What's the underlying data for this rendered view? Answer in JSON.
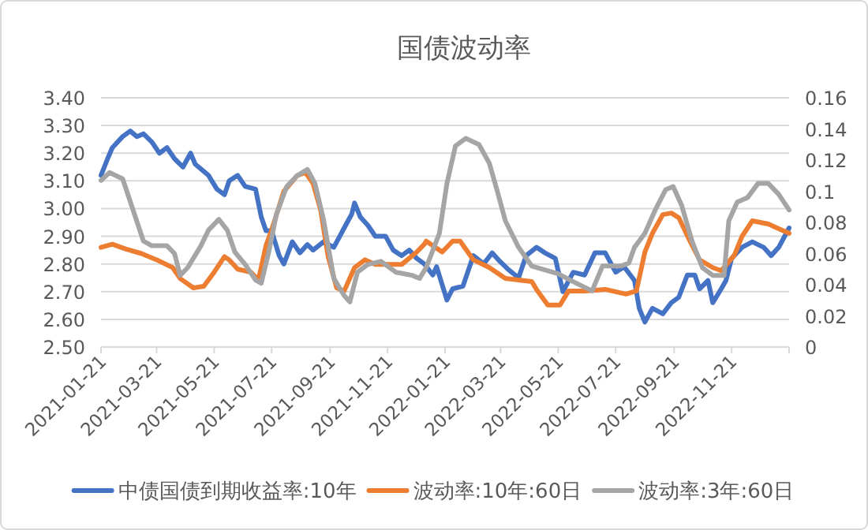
{
  "chart_data": {
    "type": "line",
    "title": "国债波动率",
    "xlim": [
      "2021-01-21",
      "2023-01-21"
    ],
    "xticks": [
      "2021-01-21",
      "2021-03-21",
      "2021-05-21",
      "2021-07-21",
      "2021-09-21",
      "2021-11-21",
      "2022-01-21",
      "2022-03-21",
      "2022-05-21",
      "2022-07-21",
      "2022-09-21",
      "2022-11-21",
      {
        "value": "2023-01-21",
        "label": null
      }
    ],
    "ylim": [
      2.5,
      3.4
    ],
    "yticks": [
      {
        "value": 2.5,
        "label": "2.50"
      },
      {
        "value": 2.6,
        "label": "2.60"
      },
      {
        "value": 2.7,
        "label": "2.70"
      },
      {
        "value": 2.8,
        "label": "2.80"
      },
      {
        "value": 2.9,
        "label": "2.90"
      },
      {
        "value": 3.0,
        "label": "3.00"
      },
      {
        "value": 3.1,
        "label": "3.10"
      },
      {
        "value": 3.2,
        "label": "3.20"
      },
      {
        "value": 3.3,
        "label": "3.30"
      },
      {
        "value": 3.4,
        "label": "3.40"
      }
    ],
    "y2lim": [
      0,
      0.16
    ],
    "y2ticks": [
      0,
      0.02,
      0.04,
      0.06,
      0.08,
      0.1,
      0.12,
      0.14,
      0.16
    ],
    "grid": "y",
    "legend": "bottom",
    "marker": "none",
    "line_style": "solid",
    "series": [
      {
        "name": "中债国债到期收益率:10年",
        "color": "#4472c4",
        "x": [
          "2021-01-21",
          "2021-01-28",
          "2021-02-02",
          "2021-02-13",
          "2021-02-21",
          "2021-02-28",
          "2021-03-07",
          "2021-03-16",
          "2021-03-24",
          "2021-04-01",
          "2021-04-09",
          "2021-04-18",
          "2021-04-26",
          "2021-05-01",
          "2021-05-15",
          "2021-05-24",
          "2021-06-01",
          "2021-06-06",
          "2021-06-15",
          "2021-06-23",
          "2021-07-04",
          "2021-07-10",
          "2021-07-15",
          "2021-07-21",
          "2021-07-29",
          "2021-08-03",
          "2021-08-12",
          "2021-08-20",
          "2021-08-28",
          "2021-09-03",
          "2021-09-14",
          "2021-09-25",
          "2021-10-06",
          "2021-10-14",
          "2021-10-17",
          "2021-10-23",
          "2021-10-31",
          "2021-11-08",
          "2021-11-19",
          "2021-11-27",
          "2021-12-06",
          "2021-12-14",
          "2021-12-22",
          "2021-12-30",
          "2022-01-08",
          "2022-01-12",
          "2022-01-23",
          "2022-01-29",
          "2022-02-09",
          "2022-02-20",
          "2022-03-03",
          "2022-03-12",
          "2022-03-20",
          "2022-03-29",
          "2022-04-09",
          "2022-04-17",
          "2022-04-28",
          "2022-05-07",
          "2022-05-18",
          "2022-05-26",
          "2022-06-06",
          "2022-06-18",
          "2022-06-29",
          "2022-07-10",
          "2022-07-21",
          "2022-07-30",
          "2022-08-10",
          "2022-08-15",
          "2022-08-21",
          "2022-08-29",
          "2022-09-09",
          "2022-09-18",
          "2022-09-26",
          "2022-10-05",
          "2022-10-13",
          "2022-10-18",
          "2022-10-27",
          "2022-11-01",
          "2022-11-10",
          "2022-11-15",
          "2022-11-21",
          "2022-12-02",
          "2022-12-13",
          "2022-12-25",
          "2023-01-02",
          "2023-01-10",
          "2023-01-21"
        ],
        "values": [
          3.12,
          3.18,
          3.22,
          3.26,
          3.28,
          3.26,
          3.27,
          3.24,
          3.2,
          3.22,
          3.18,
          3.15,
          3.2,
          3.16,
          3.12,
          3.07,
          3.05,
          3.1,
          3.12,
          3.08,
          3.07,
          2.97,
          2.92,
          2.92,
          2.83,
          2.8,
          2.88,
          2.84,
          2.87,
          2.85,
          2.88,
          2.86,
          2.93,
          2.98,
          3.02,
          2.97,
          2.94,
          2.9,
          2.9,
          2.85,
          2.83,
          2.85,
          2.82,
          2.8,
          2.76,
          2.79,
          2.67,
          2.71,
          2.72,
          2.83,
          2.8,
          2.84,
          2.81,
          2.78,
          2.75,
          2.83,
          2.86,
          2.84,
          2.82,
          2.7,
          2.77,
          2.76,
          2.84,
          2.84,
          2.77,
          2.79,
          2.74,
          2.64,
          2.59,
          2.64,
          2.62,
          2.66,
          2.68,
          2.76,
          2.76,
          2.71,
          2.74,
          2.66,
          2.71,
          2.74,
          2.82,
          2.86,
          2.88,
          2.86,
          2.83,
          2.86,
          2.93
        ]
      },
      {
        "name": "波动率:10年:60日",
        "color": "#ed7d31",
        "axis": "y2",
        "x": [
          "2021-01-21",
          "2021-02-02",
          "2021-02-16",
          "2021-03-05",
          "2021-03-21",
          "2021-04-07",
          "2021-04-15",
          "2021-04-29",
          "2021-05-10",
          "2021-05-21",
          "2021-06-01",
          "2021-06-06",
          "2021-06-15",
          "2021-06-29",
          "2021-07-07",
          "2021-07-15",
          "2021-07-21",
          "2021-08-03",
          "2021-08-17",
          "2021-08-26",
          "2021-09-03",
          "2021-09-11",
          "2021-09-19",
          "2021-09-28",
          "2021-10-06",
          "2021-10-17",
          "2021-10-28",
          "2021-11-08",
          "2021-11-22",
          "2021-12-06",
          "2021-12-22",
          "2021-12-30",
          "2022-01-01",
          "2022-01-18",
          "2022-01-29",
          "2022-02-06",
          "2022-02-20",
          "2022-03-09",
          "2022-03-26",
          "2022-04-23",
          "2022-04-28",
          "2022-05-10",
          "2022-05-23",
          "2022-06-01",
          "2022-06-18",
          "2022-07-10",
          "2022-08-01",
          "2022-08-12",
          "2022-08-21",
          "2022-08-29",
          "2022-09-09",
          "2022-09-18",
          "2022-09-26",
          "2022-10-07",
          "2022-10-18",
          "2022-11-01",
          "2022-11-10",
          "2022-11-24",
          "2022-12-02",
          "2022-12-13",
          "2022-12-30",
          "2023-01-10",
          "2023-01-21"
        ],
        "values": [
          0.064,
          0.066,
          0.063,
          0.06,
          0.056,
          0.051,
          0.044,
          0.038,
          0.039,
          0.048,
          0.058,
          0.056,
          0.05,
          0.048,
          0.043,
          0.065,
          0.075,
          0.1,
          0.11,
          0.112,
          0.105,
          0.088,
          0.058,
          0.038,
          0.036,
          0.051,
          0.056,
          0.053,
          0.053,
          0.053,
          0.061,
          0.066,
          0.068,
          0.061,
          0.068,
          0.068,
          0.056,
          0.051,
          0.044,
          0.042,
          0.037,
          0.027,
          0.027,
          0.036,
          0.036,
          0.037,
          0.034,
          0.036,
          0.061,
          0.073,
          0.085,
          0.086,
          0.083,
          0.069,
          0.056,
          0.051,
          0.049,
          0.059,
          0.071,
          0.081,
          0.079,
          0.076,
          0.073
        ]
      },
      {
        "name": "波动率:3年:60日",
        "color": "#a5a5a5",
        "axis": "y2",
        "x": [
          "2021-01-21",
          "2021-01-30",
          "2021-02-13",
          "2021-02-24",
          "2021-03-07",
          "2021-03-16",
          "2021-04-01",
          "2021-04-09",
          "2021-04-15",
          "2021-04-23",
          "2021-05-07",
          "2021-05-15",
          "2021-05-26",
          "2021-06-04",
          "2021-06-12",
          "2021-06-23",
          "2021-07-04",
          "2021-07-10",
          "2021-07-18",
          "2021-07-26",
          "2021-08-06",
          "2021-08-17",
          "2021-08-28",
          "2021-09-05",
          "2021-09-14",
          "2021-09-25",
          "2021-10-06",
          "2021-10-12",
          "2021-10-20",
          "2021-10-31",
          "2021-11-14",
          "2021-11-30",
          "2021-12-17",
          "2021-12-25",
          "2022-01-01",
          "2022-01-15",
          "2022-01-23",
          "2022-02-01",
          "2022-02-12",
          "2022-02-26",
          "2022-03-09",
          "2022-03-17",
          "2022-03-26",
          "2022-04-09",
          "2022-04-23",
          "2022-05-21",
          "2022-06-06",
          "2022-06-26",
          "2022-07-07",
          "2022-07-27",
          "2022-08-04",
          "2022-08-10",
          "2022-08-21",
          "2022-09-01",
          "2022-09-12",
          "2022-09-20",
          "2022-09-29",
          "2022-10-10",
          "2022-10-21",
          "2022-11-01",
          "2022-11-13",
          "2022-11-18",
          "2022-11-27",
          "2022-12-08",
          "2022-12-19",
          "2022-12-30",
          "2023-01-10",
          "2023-01-21"
        ],
        "values": [
          0.107,
          0.112,
          0.108,
          0.088,
          0.068,
          0.065,
          0.065,
          0.06,
          0.046,
          0.051,
          0.065,
          0.075,
          0.082,
          0.075,
          0.061,
          0.053,
          0.043,
          0.041,
          0.061,
          0.085,
          0.103,
          0.11,
          0.114,
          0.105,
          0.082,
          0.044,
          0.033,
          0.029,
          0.048,
          0.053,
          0.055,
          0.048,
          0.046,
          0.044,
          0.051,
          0.073,
          0.105,
          0.129,
          0.134,
          0.13,
          0.118,
          0.101,
          0.081,
          0.064,
          0.052,
          0.047,
          0.042,
          0.036,
          0.052,
          0.052,
          0.054,
          0.064,
          0.073,
          0.088,
          0.101,
          0.103,
          0.091,
          0.068,
          0.051,
          0.046,
          0.046,
          0.081,
          0.093,
          0.096,
          0.105,
          0.105,
          0.098,
          0.088
        ]
      }
    ]
  }
}
